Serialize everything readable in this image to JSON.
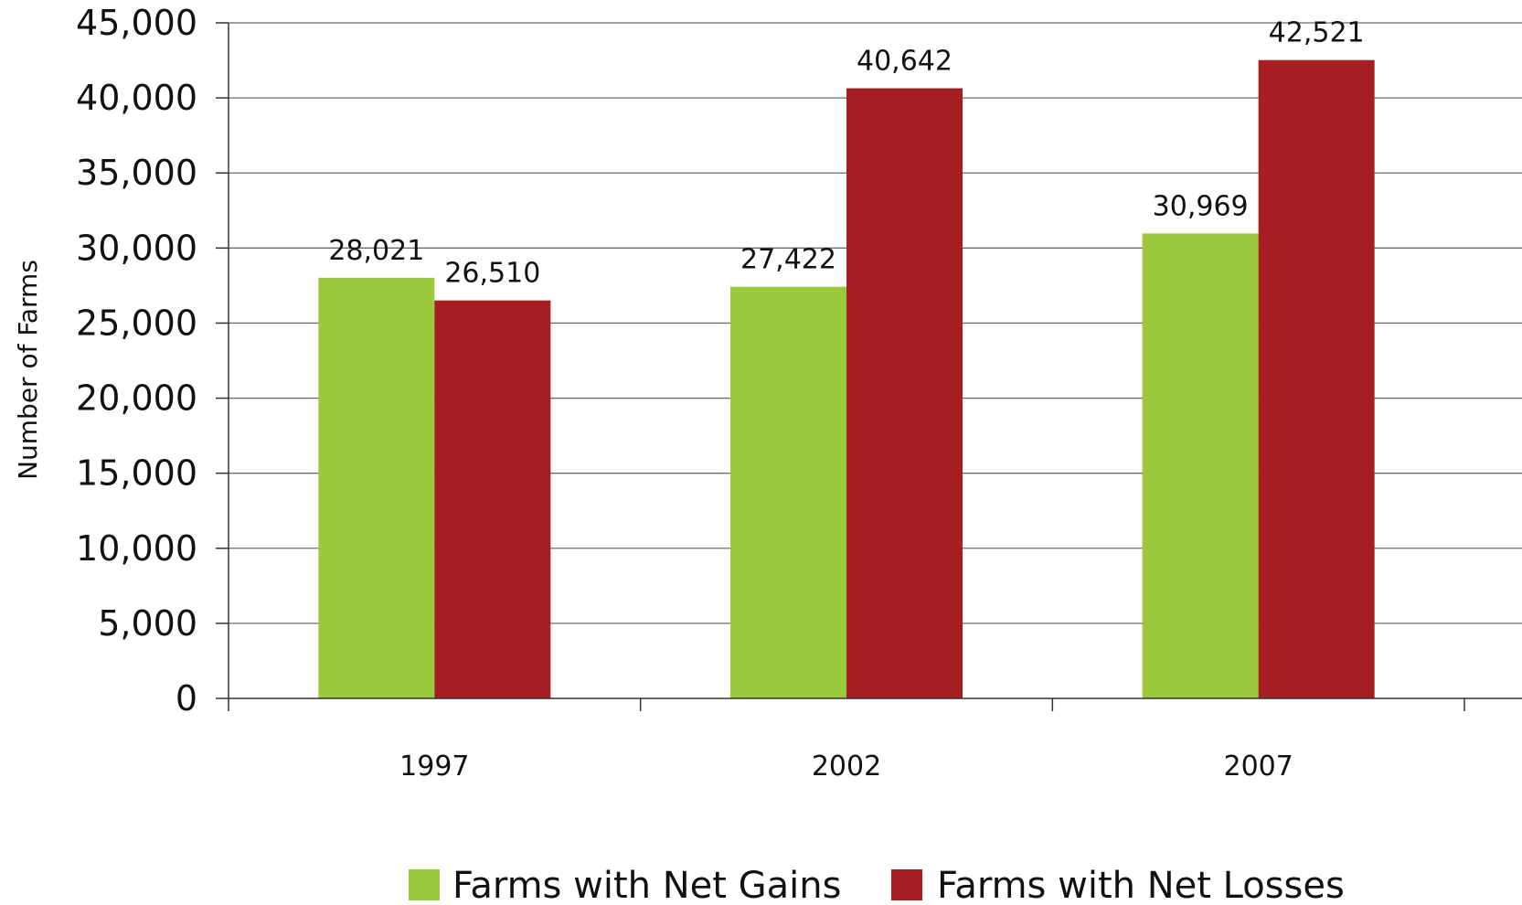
{
  "chart_data": {
    "type": "bar",
    "categories": [
      "1997",
      "2002",
      "2007"
    ],
    "series": [
      {
        "name": "Farms with Net Gains",
        "color": "#9ACA3C",
        "values": [
          28021,
          27422,
          30969
        ],
        "labels": [
          "28,021",
          "27,422",
          "30,969"
        ]
      },
      {
        "name": "Farms with Net Losses",
        "color": "#A51E22",
        "values": [
          26510,
          40642,
          42521
        ],
        "labels": [
          "26,510",
          "40,642",
          "42,521"
        ]
      }
    ],
    "title": "",
    "xlabel": "",
    "ylabel": "Number of Farms",
    "ylim": [
      0,
      45000
    ],
    "yticks": [
      0,
      5000,
      10000,
      15000,
      20000,
      25000,
      30000,
      35000,
      40000,
      45000
    ],
    "ytick_labels": [
      "0",
      "5,000",
      "10,000",
      "15,000",
      "20,000",
      "25,000",
      "30,000",
      "35,000",
      "40,000",
      "45,000"
    ],
    "grid": true,
    "legend_position": "bottom"
  }
}
